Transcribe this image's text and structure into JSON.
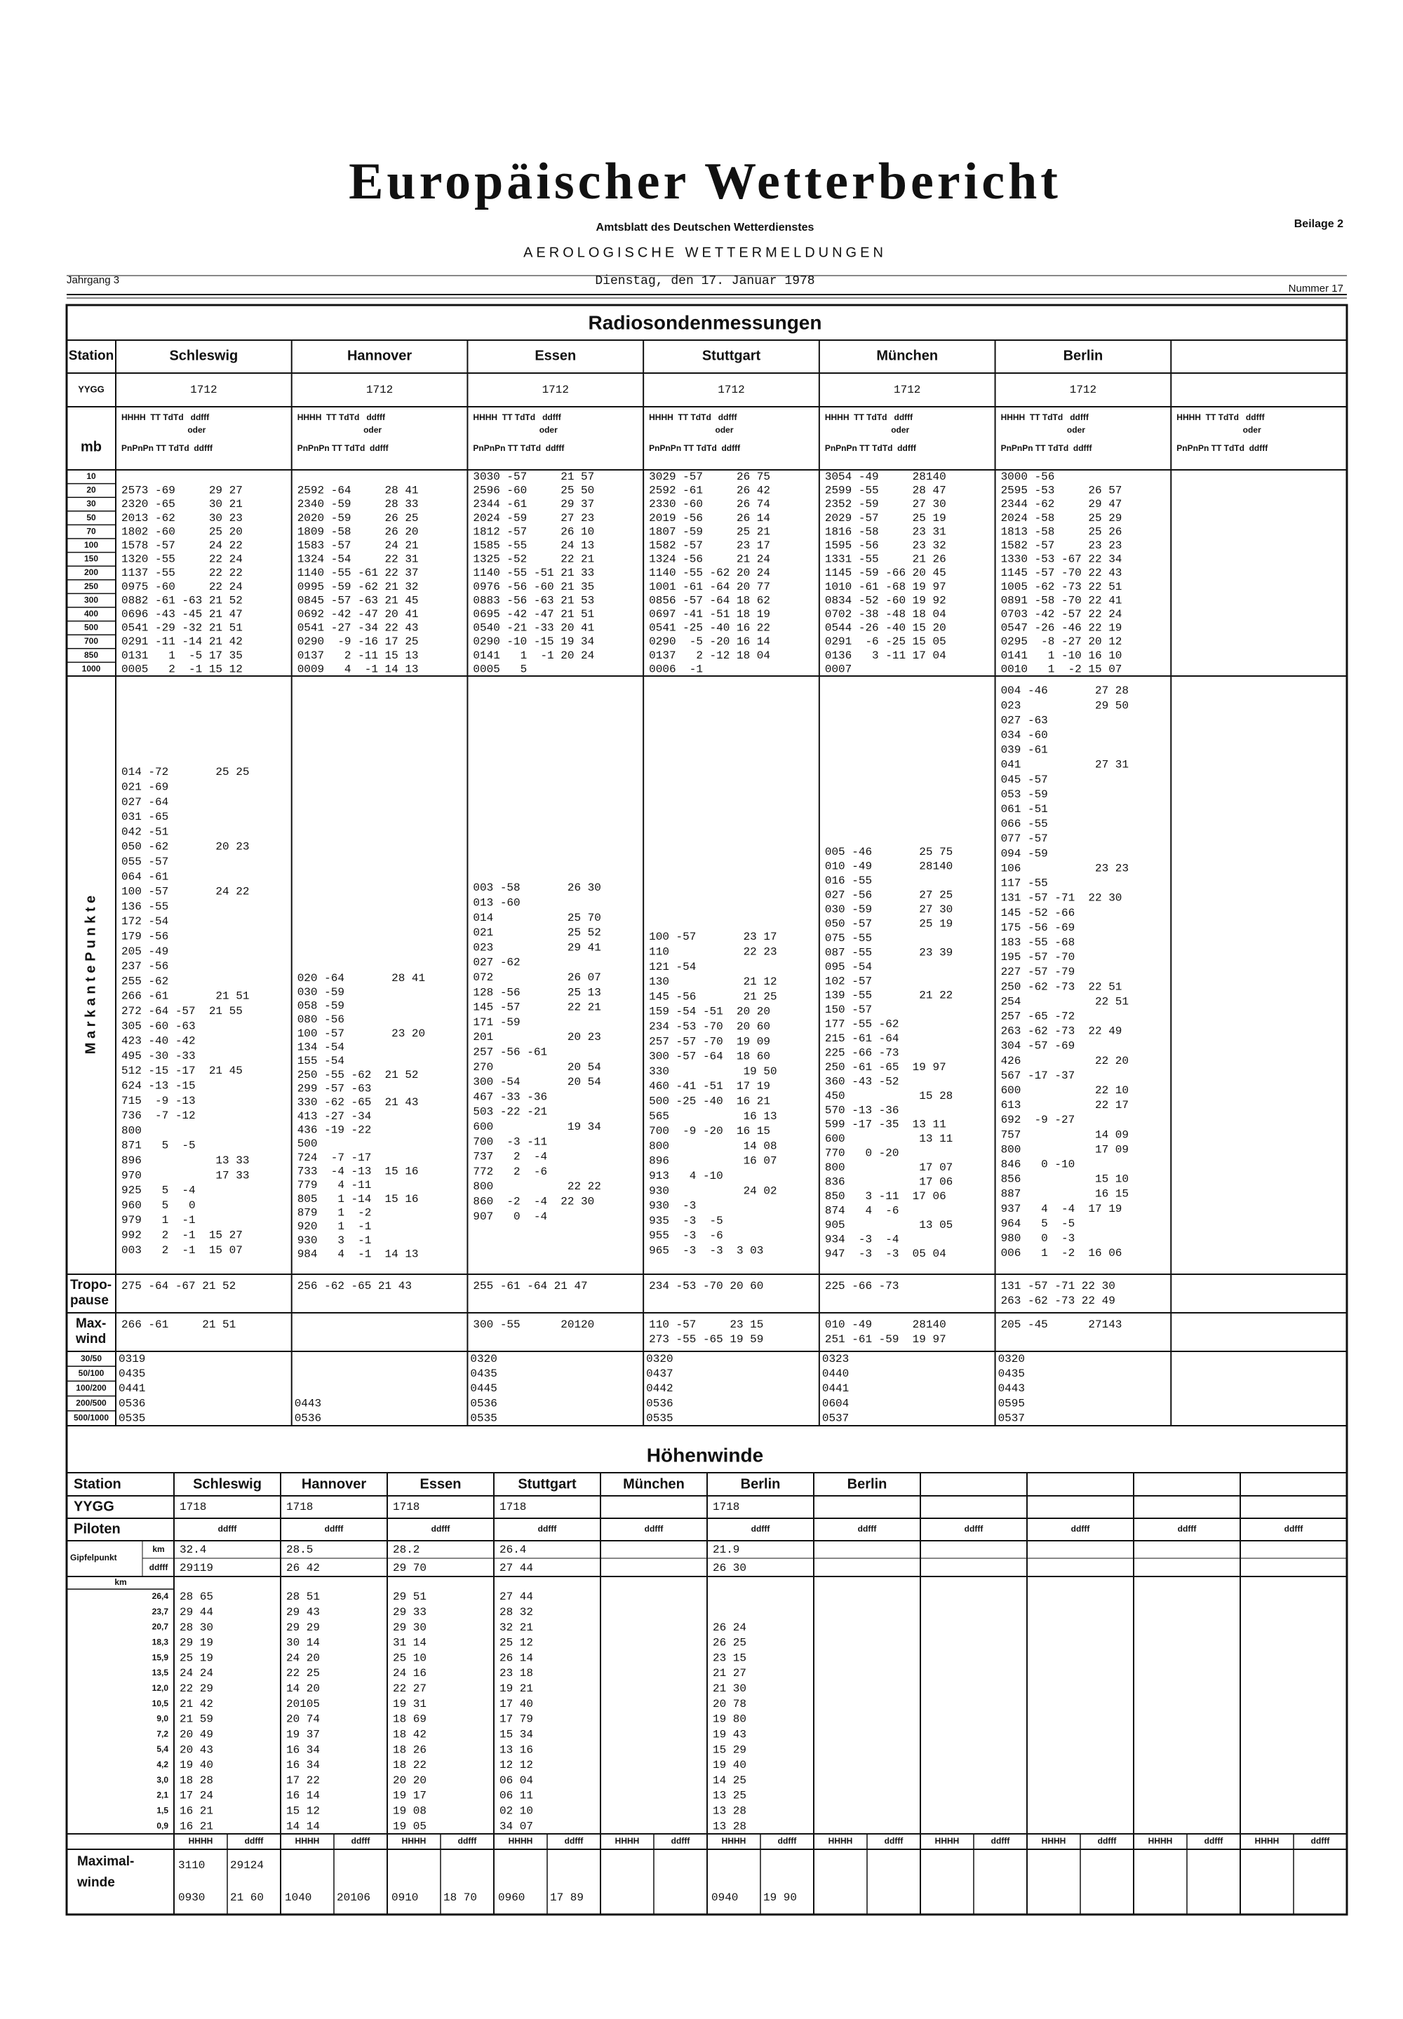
{
  "header": {
    "title": "Europäischer Wetterbericht",
    "subtitle": "Amtsblatt des Deutschen Wetterdienstes",
    "supplement": "Beilage 2",
    "section": "AEROLOGISCHE WETTERMELDUNGEN",
    "volume": "Jahrgang 3",
    "date": "Dienstag, den 17. Januar 1978",
    "issue": "Nummer 17"
  },
  "radiosonde": {
    "title": "Radiosondenmessungen",
    "station_label": "Station",
    "yygg_label": "YYGG",
    "mb_label": "mb",
    "col_head_1": "HHHH  TT TdTd   ddfff",
    "col_head_or": "oder",
    "col_head_2": "PnPnPn TT TdTd  ddfff",
    "markante_label": "M a r k a n t e   P u n k t e",
    "tropopause_label": [
      "Tropo-",
      "pause"
    ],
    "maxwind_label": [
      "Max-",
      "wind"
    ],
    "levels": [
      "10",
      "20",
      "30",
      "50",
      "70",
      "100",
      "150",
      "200",
      "250",
      "300",
      "400",
      "500",
      "700",
      "850",
      "1000"
    ],
    "thickness_labels": [
      "30/50",
      "50/100",
      "100/200",
      "200/500",
      "500/1000"
    ],
    "stations": [
      {
        "name": "Schleswig",
        "yygg": "1712",
        "standard": [
          null,
          "2573 -69     29 27",
          "2320 -65     30 21",
          "2013 -62     30 23",
          "1802 -60     25 20",
          "1578 -57     24 22",
          "1320 -55     22 24",
          "1137 -55     22 22",
          "0975 -60     22 24",
          "0882 -61 -63 21 52",
          "0696 -43 -45 21 47",
          "0541 -29 -32 21 51",
          "0291 -11 -14 21 42",
          "0131   1  -5 17 35",
          "0005   2  -1 15 12"
        ],
        "markante": [
          "014 -72       25 25",
          "021 -69",
          "027 -64",
          "031 -65",
          "042 -51",
          "050 -62       20 23",
          "055 -57",
          "064 -61",
          "100 -57       24 22",
          "136 -55",
          "172 -54",
          "179 -56",
          "205 -49",
          "237 -56",
          "255 -62",
          "266 -61       21 51",
          "272 -64 -57  21 55",
          "305 -60 -63",
          "423 -40 -42",
          "495 -30 -33",
          "512 -15 -17  21 45",
          "624 -13 -15",
          "715  -9 -13",
          "736  -7 -12",
          "800",
          "871   5  -5",
          "896           13 33",
          "970           17 33",
          "925   5  -4",
          "960   5   0",
          "979   1  -1",
          "992   2  -1  15 27",
          "003   2  -1  15 07"
        ],
        "tropopause": [
          "275 -64 -67 21 52"
        ],
        "maxwind": [
          "266 -61     21 51"
        ],
        "thickness": [
          "0319",
          "0435",
          "0441",
          "0536",
          "0535"
        ]
      },
      {
        "name": "Hannover",
        "yygg": "1712",
        "standard": [
          null,
          "2592 -64     28 41",
          "2340 -59     28 33",
          "2020 -59     26 25",
          "1809 -58     26 20",
          "1583 -57     24 21",
          "1324 -54     22 31",
          "1140 -55 -61 22 37",
          "0995 -59 -62 21 32",
          "0845 -57 -63 21 45",
          "0692 -42 -47 20 41",
          "0541 -27 -34 22 43",
          "0290  -9 -16 17 25",
          "0137   2 -11 15 13",
          "0009   4  -1 14 13"
        ],
        "markante": [
          "020 -64       28 41",
          "030 -59",
          "058 -59",
          "080 -56",
          "100 -57       23 20",
          "134 -54",
          "155 -54",
          "250 -55 -62  21 52",
          "299 -57 -63",
          "330 -62 -65  21 43",
          "413 -27 -34",
          "436 -19 -22",
          "500",
          "724  -7 -17",
          "733  -4 -13  15 16",
          "779   4 -11",
          "805   1 -14  15 16",
          "879   1  -2",
          "920   1  -1",
          "930   3  -1",
          "984   4  -1  14 13"
        ],
        "tropopause": [
          "256 -62 -65 21 43"
        ],
        "maxwind": [],
        "thickness": [
          null,
          null,
          null,
          "0443",
          "0536"
        ]
      },
      {
        "name": "Essen",
        "yygg": "1712",
        "standard": [
          "3030 -57     21 57",
          "2596 -60     25 50",
          "2344 -61     29 37",
          "2024 -59     27 23",
          "1812 -57     26 10",
          "1585 -55     24 13",
          "1325 -52     22 21",
          "1140 -55 -51 21 33",
          "0976 -56 -60 21 35",
          "0883 -56 -63 21 53",
          "0695 -42 -47 21 51",
          "0540 -21 -33 20 41",
          "0290 -10 -15 19 34",
          "0141   1  -1 20 24",
          "0005   5"
        ],
        "markante": [
          "003 -58       26 30",
          "013 -60",
          "014           25 70",
          "021           25 52",
          "023           29 41",
          "027 -62",
          "072           26 07",
          "128 -56       25 13",
          "145 -57       22 21",
          "171 -59",
          "201           20 23",
          "257 -56 -61",
          "270           20 54",
          "300 -54       20 54",
          "467 -33 -36",
          "503 -22 -21",
          "600           19 34",
          "700  -3 -11",
          "737   2  -4",
          "772   2  -6",
          "800           22 22",
          "860  -2  -4  22 30",
          "907   0  -4"
        ],
        "tropopause": [
          "255 -61 -64 21 47"
        ],
        "maxwind": [
          "300 -55      20120"
        ],
        "thickness": [
          "0320",
          "0435",
          "0445",
          "0536",
          "0535"
        ]
      },
      {
        "name": "Stuttgart",
        "yygg": "1712",
        "standard": [
          "3029 -57     26 75",
          "2592 -61     26 42",
          "2330 -60     26 74",
          "2019 -56     26 14",
          "1807 -59     25 21",
          "1582 -57     23 17",
          "1324 -56     21 24",
          "1140 -55 -62 20 24",
          "1001 -61 -64 20 77",
          "0856 -57 -64 18 62",
          "0697 -41 -51 18 19",
          "0541 -25 -40 16 22",
          "0290  -5 -20 16 14",
          "0137   2 -12 18 04",
          "0006  -1"
        ],
        "markante": [
          "100 -57       23 17",
          "110           22 23",
          "121 -54",
          "130           21 12",
          "145 -56       21 25",
          "159 -54 -51  20 20",
          "234 -53 -70  20 60",
          "257 -57 -70  19 09",
          "300 -57 -64  18 60",
          "330           19 50",
          "460 -41 -51  17 19",
          "500 -25 -40  16 21",
          "565           16 13",
          "700  -9 -20  16 15",
          "800           14 08",
          "896           16 07",
          "913   4 -10",
          "930           24 02",
          "930  -3",
          "935  -3  -5",
          "955  -3  -6",
          "965  -3  -3  3 03"
        ],
        "tropopause": [
          "234 -53 -70 20 60"
        ],
        "maxwind": [
          "110 -57     23 15",
          "273 -55 -65 19 59"
        ],
        "thickness": [
          "0320",
          "0437",
          "0442",
          "0536",
          "0535"
        ]
      },
      {
        "name": "München",
        "yygg": "1712",
        "standard": [
          "3054 -49     28140",
          "2599 -55     28 47",
          "2352 -59     27 30",
          "2029 -57     25 19",
          "1816 -58     23 31",
          "1595 -56     23 32",
          "1331 -55     21 26",
          "1145 -59 -66 20 45",
          "1010 -61 -68 19 97",
          "0834 -52 -60 19 92",
          "0702 -38 -48 18 04",
          "0544 -26 -40 15 20",
          "0291  -6 -25 15 05",
          "0136   3 -11 17 04",
          "0007"
        ],
        "markante": [
          "005 -46       25 75",
          "010 -49       28140",
          "016 -55",
          "027 -56       27 25",
          "030 -59       27 30",
          "050 -57       25 19",
          "075 -55",
          "087 -55       23 39",
          "095 -54",
          "102 -57",
          "139 -55       21 22",
          "150 -57",
          "177 -55 -62",
          "215 -61 -64",
          "225 -66 -73",
          "250 -61 -65  19 97",
          "360 -43 -52",
          "450           15 28",
          "570 -13 -36",
          "599 -17 -35  13 11",
          "600           13 11",
          "770   0 -20",
          "800           17 07",
          "836           17 06",
          "850   3 -11  17 06",
          "874   4  -6",
          "905           13 05",
          "934  -3  -4",
          "947  -3  -3  05 04"
        ],
        "tropopause": [
          "225 -66 -73"
        ],
        "maxwind": [
          "010 -49      28140",
          "251 -61 -59  19 97"
        ],
        "thickness": [
          "0323",
          "0440",
          "0441",
          "0604",
          "0537"
        ]
      },
      {
        "name": "Berlin",
        "yygg": "1712",
        "standard": [
          "3000 -56",
          "2595 -53     26 57",
          "2344 -62     29 47",
          "2024 -58     25 29",
          "1813 -58     25 26",
          "1582 -57     23 23",
          "1330 -53 -67 22 34",
          "1145 -57 -70 22 43",
          "1005 -62 -73 22 51",
          "0891 -58 -70 22 41",
          "0703 -42 -57 22 24",
          "0547 -26 -46 22 19",
          "0295  -8 -27 20 12",
          "0141   1 -10 16 10",
          "0010   1  -2 15 07"
        ],
        "markante": [
          "004 -46       27 28",
          "023           29 50",
          "027 -63",
          "034 -60",
          "039 -61",
          "041           27 31",
          "045 -57",
          "053 -59",
          "061 -51",
          "066 -55",
          "077 -57",
          "094 -59",
          "106           23 23",
          "117 -55",
          "131 -57 -71  22 30",
          "145 -52 -66",
          "175 -56 -69",
          "183 -55 -68",
          "195 -57 -70",
          "227 -57 -79",
          "250 -62 -73  22 51",
          "254           22 51",
          "257 -65 -72",
          "263 -62 -73  22 49",
          "304 -57 -69",
          "426           22 20",
          "567 -17 -37",
          "600           22 10",
          "613           22 17",
          "692  -9 -27",
          "757           14 09",
          "800           17 09",
          "846   0 -10",
          "856           15 10",
          "887           16 15",
          "937   4  -4  17 19",
          "964   5  -5",
          "980   0  -3",
          "006   1  -2  16 06"
        ],
        "tropopause": [
          "131 -57 -71 22 30",
          "263 -62 -73 22 49"
        ],
        "maxwind": [
          "205 -45      27143"
        ],
        "thickness": [
          "0320",
          "0435",
          "0443",
          "0595",
          "0537"
        ]
      }
    ]
  },
  "hoehenwinde": {
    "title": "Höhenwinde",
    "station_label": "Station",
    "yygg_label": "YYGG",
    "pilot_label": "Piloten",
    "col_head": "ddfff",
    "summit_label": "Gipfelpunkt",
    "km_label": "km",
    "ddfff_label": "ddfff",
    "maxwind_label": [
      "Maximal-",
      "winde"
    ],
    "max_head_h": "HHHH",
    "max_head_d": "ddfff",
    "levels": [
      "26,4",
      "23,7",
      "20,7",
      "18,3",
      "15,9",
      "13,5",
      "12,0",
      "10,5",
      "9,0",
      "7,2",
      "5,4",
      "4,2",
      "3,0",
      "2,1",
      "1,5",
      "0,9"
    ],
    "columns": [
      {
        "name": "Schleswig",
        "yygg": "1718",
        "summit_km": "32.4",
        "summit_ddfff": "29119",
        "winds": [
          "28 65",
          "29 44",
          "28 30",
          "29 19",
          "25 19",
          "24 24",
          "22 29",
          "21 42",
          "21 59",
          "20 49",
          "20 43",
          "19 40",
          "18 28",
          "17 24",
          "16 21",
          "16 21"
        ],
        "maxwind": [
          [
            "3110",
            "29124"
          ],
          [
            "0930",
            "21 60"
          ]
        ]
      },
      {
        "name": "Hannover",
        "yygg": "1718",
        "summit_km": "28.5",
        "summit_ddfff": "26 42",
        "winds": [
          "28 51",
          "29 43",
          "29 29",
          "30 14",
          "24 20",
          "22 25",
          "14 20",
          "20105",
          "20 74",
          "19 37",
          "16 34",
          "16 34",
          "17 22",
          "16 14",
          "15 12",
          "14 14"
        ],
        "maxwind": [
          null,
          [
            "1040",
            "20106"
          ]
        ]
      },
      {
        "name": "Essen",
        "yygg": "1718",
        "summit_km": "28.2",
        "summit_ddfff": "29 70",
        "winds": [
          "29 51",
          "29 33",
          "29 30",
          "31 14",
          "25 10",
          "24 16",
          "22 27",
          "19 31",
          "18 69",
          "18 42",
          "18 26",
          "18 22",
          "20 20",
          "19 17",
          "19 08",
          "19 05"
        ],
        "maxwind": [
          null,
          [
            "0910",
            "18 70"
          ]
        ]
      },
      {
        "name": "Stuttgart",
        "yygg": "1718",
        "summit_km": "26.4",
        "summit_ddfff": "27 44",
        "winds": [
          "27 44",
          "28 32",
          "32 21",
          "25 12",
          "26 14",
          "23 18",
          "19 21",
          "17 40",
          "17 79",
          "15 34",
          "13 16",
          "12 12",
          "06 04",
          "06 11",
          "02 10",
          "34 07"
        ],
        "maxwind": [
          null,
          [
            "0960",
            "17 89"
          ]
        ]
      },
      {
        "name": "München",
        "yygg": null,
        "summit_km": null,
        "summit_ddfff": null,
        "winds": [],
        "maxwind": []
      },
      {
        "name": "Berlin",
        "yygg": "1718",
        "summit_km": "21.9",
        "summit_ddfff": "26 30",
        "winds": [
          null,
          null,
          "26 24",
          "26 25",
          "23 15",
          "21 27",
          "21 30",
          "20 78",
          "19 80",
          "19 43",
          "15 29",
          "19 40",
          "14 25",
          "13 25",
          "13 28",
          "13 28"
        ],
        "maxwind": [
          null,
          [
            "0940",
            "19 90"
          ]
        ]
      },
      {
        "name": "Berlin",
        "yygg": null,
        "summit_km": null,
        "summit_ddfff": null,
        "winds": [],
        "maxwind": []
      }
    ]
  }
}
